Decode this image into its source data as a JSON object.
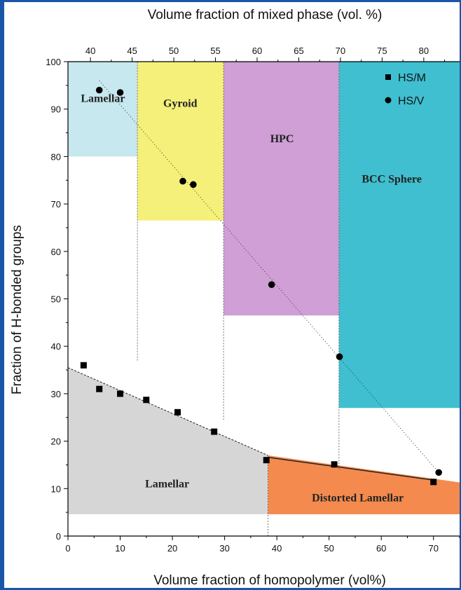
{
  "chart_data": {
    "type": "scatter",
    "xlabel": "Volume fraction of homopolymer (vol%)",
    "x2label": "Volume fraction of mixed phase (vol. %)",
    "ylabel": "Fraction of H-bonded groups",
    "xlim": [
      0,
      75
    ],
    "ylim": [
      0,
      100
    ],
    "x2lim": [
      37.3,
      84.3
    ],
    "xticks": [
      "0",
      "10",
      "20",
      "30",
      "40",
      "50",
      "60",
      "70"
    ],
    "yticks": [
      "0",
      "10",
      "20",
      "30",
      "40",
      "50",
      "60",
      "70",
      "80",
      "90",
      "100"
    ],
    "x2ticks": [
      "40",
      "45",
      "50",
      "55",
      "60",
      "65",
      "70",
      "75",
      "80"
    ],
    "series": [
      {
        "name": "HS/M",
        "marker": "square",
        "color": "#000000",
        "x": [
          3,
          6,
          10,
          15,
          21,
          28,
          38,
          51,
          70
        ],
        "y": [
          36,
          31,
          30,
          28.7,
          26.1,
          22,
          16,
          15.1,
          11.4
        ]
      },
      {
        "name": "HS/V",
        "marker": "circle",
        "color": "#000000",
        "x": [
          6,
          10,
          22,
          24,
          39,
          52,
          71
        ],
        "y": [
          94,
          93.5,
          74.8,
          74.1,
          53,
          37.8,
          13.4
        ]
      }
    ],
    "regions": [
      {
        "label": "Lamellar",
        "color": "#c6e8ee",
        "x": [
          0,
          13.3
        ],
        "y": [
          80,
          100
        ],
        "label_at": [
          6.7,
          91.5
        ]
      },
      {
        "label": "Gyroid",
        "color": "#f5f07a",
        "x": [
          13.3,
          29.8
        ],
        "y": [
          66.5,
          100
        ],
        "label_at": [
          21.5,
          90.5
        ]
      },
      {
        "label": "HPC",
        "color": "#cf9fd6",
        "x": [
          29.8,
          51.9
        ],
        "y": [
          46.5,
          100
        ],
        "label_at": [
          41,
          83
        ]
      },
      {
        "label": "BCC Sphere",
        "color": "#3fbfd0",
        "x": [
          51.9,
          75
        ],
        "y": [
          27,
          100
        ],
        "label_at": [
          62,
          74.5
        ]
      }
    ],
    "lamellar_label": "Lamellar",
    "distorted_label": "Distorted Lamellar",
    "legend_position": "top-right"
  }
}
